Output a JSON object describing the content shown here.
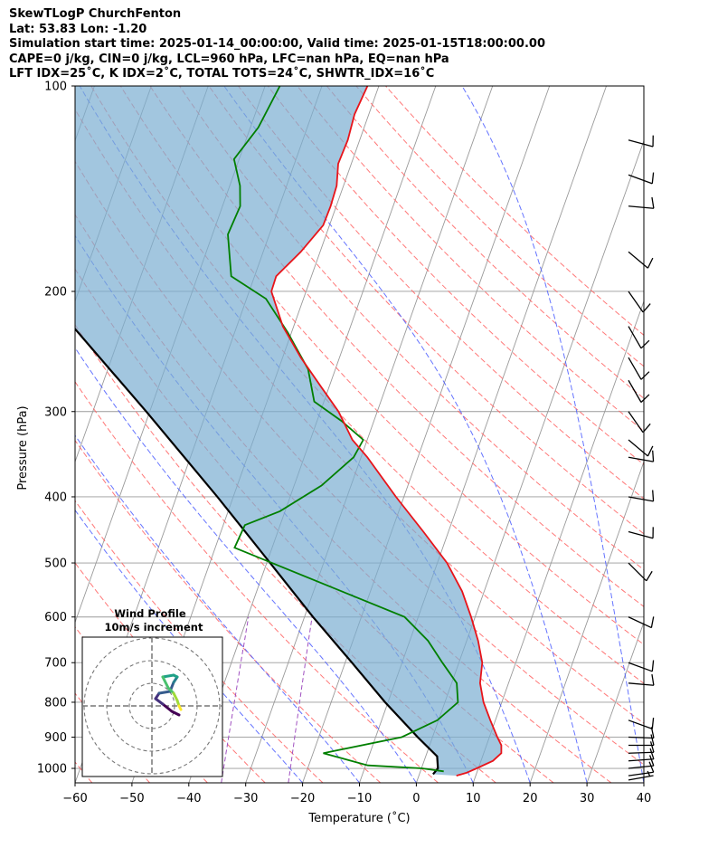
{
  "header": {
    "line1": "SkewTLogP ChurchFenton",
    "line2": "Lat: 53.83   Lon: -1.20",
    "line3": "Simulation start time: 2025-01-14_00:00:00, Valid time: 2025-01-15T18:00:00.00",
    "line4": "CAPE=0 j/kg, CIN=0 j/kg, LCL=960 hPa, LFC=nan hPa, EQ=nan hPa",
    "line5": "LFT IDX=25˚C, K IDX=2˚C, TOTAL TOTS=24˚C, SHWTR_IDX=16˚C"
  },
  "chart_data": {
    "type": "line",
    "subtype": "skew-t log-p",
    "xlabel": "Temperature (˚C)",
    "ylabel": "Pressure (hPa)",
    "xlim": [
      -60,
      40
    ],
    "ylim": [
      1050,
      100
    ],
    "y_scale": "log",
    "x_ticks": [
      "−60",
      "−50",
      "−40",
      "−30",
      "−20",
      "−10",
      "0",
      "10",
      "20",
      "30",
      "40"
    ],
    "y_ticks": [
      "100",
      "200",
      "300",
      "400",
      "500",
      "600",
      "700",
      "800",
      "900",
      "1000"
    ],
    "grid": true,
    "colors": {
      "temperature": "#e8141a",
      "dewpoint": "#007f00",
      "parcel": "#000000",
      "fill": "#7aaed2",
      "dry_adiabat": "#ff6060",
      "moist_adiabat": "#4a5cff",
      "mixing_ratio": "#a050c0",
      "isotherm": "#9a9a9a"
    },
    "series": [
      {
        "role": "temperature",
        "points": [
          {
            "p": 1025,
            "t": 6.6
          },
          {
            "p": 1015,
            "t": 8.2
          },
          {
            "p": 1000,
            "t": 9.7
          },
          {
            "p": 975,
            "t": 12.1
          },
          {
            "p": 950,
            "t": 13.1
          },
          {
            "p": 925,
            "t": 12.6
          },
          {
            "p": 900,
            "t": 11.4
          },
          {
            "p": 850,
            "t": 9.1
          },
          {
            "p": 800,
            "t": 6.8
          },
          {
            "p": 750,
            "t": 5.0
          },
          {
            "p": 700,
            "t": 4.1
          },
          {
            "p": 650,
            "t": 2.0
          },
          {
            "p": 600,
            "t": -0.7
          },
          {
            "p": 550,
            "t": -3.9
          },
          {
            "p": 500,
            "t": -8.3
          },
          {
            "p": 450,
            "t": -14.4
          },
          {
            "p": 400,
            "t": -21.4
          },
          {
            "p": 350,
            "t": -28.9
          },
          {
            "p": 330,
            "t": -32.6
          },
          {
            "p": 300,
            "t": -36.8
          },
          {
            "p": 275,
            "t": -41.6
          },
          {
            "p": 250,
            "t": -46.8
          },
          {
            "p": 225,
            "t": -51.9
          },
          {
            "p": 200,
            "t": -56.1
          },
          {
            "p": 190,
            "t": -56.2
          },
          {
            "p": 175,
            "t": -53.4
          },
          {
            "p": 160,
            "t": -51.1
          },
          {
            "p": 150,
            "t": -51.0
          },
          {
            "p": 140,
            "t": -51.2
          },
          {
            "p": 130,
            "t": -52.3
          },
          {
            "p": 120,
            "t": -52.1
          },
          {
            "p": 110,
            "t": -52.5
          },
          {
            "p": 100,
            "t": -52.0
          }
        ]
      },
      {
        "role": "dewpoint",
        "points": [
          {
            "p": 1010,
            "t": 4.1
          },
          {
            "p": 1000,
            "t": 0.1
          },
          {
            "p": 990,
            "t": -9.6
          },
          {
            "p": 950,
            "t": -18.2
          },
          {
            "p": 900,
            "t": -5.4
          },
          {
            "p": 850,
            "t": -0.2
          },
          {
            "p": 800,
            "t": 2.3
          },
          {
            "p": 750,
            "t": 0.9
          },
          {
            "p": 700,
            "t": -2.9
          },
          {
            "p": 650,
            "t": -6.8
          },
          {
            "p": 600,
            "t": -12.4
          },
          {
            "p": 475,
            "t": -46.6
          },
          {
            "p": 440,
            "t": -46.2
          },
          {
            "p": 420,
            "t": -40.9
          },
          {
            "p": 385,
            "t": -35.2
          },
          {
            "p": 350,
            "t": -31.3
          },
          {
            "p": 330,
            "t": -30.7
          },
          {
            "p": 310,
            "t": -35.6
          },
          {
            "p": 290,
            "t": -41.7
          },
          {
            "p": 260,
            "t": -44.8
          },
          {
            "p": 240,
            "t": -48.6
          },
          {
            "p": 230,
            "t": -50.6
          },
          {
            "p": 205,
            "t": -56.6
          },
          {
            "p": 190,
            "t": -64.1
          },
          {
            "p": 165,
            "t": -67.3
          },
          {
            "p": 150,
            "t": -66.9
          },
          {
            "p": 140,
            "t": -68.2
          },
          {
            "p": 128,
            "t": -70.9
          },
          {
            "p": 115,
            "t": -68.6
          },
          {
            "p": 100,
            "t": -67.4
          }
        ]
      },
      {
        "role": "parcel",
        "points": [
          {
            "p": 1020,
            "t": 2.4
          },
          {
            "p": 1000,
            "t": 2.9
          },
          {
            "p": 960,
            "t": 2.0
          },
          {
            "p": 900,
            "t": -2.6
          },
          {
            "p": 800,
            "t": -10.5
          },
          {
            "p": 700,
            "t": -18.8
          },
          {
            "p": 600,
            "t": -28.5
          },
          {
            "p": 500,
            "t": -39.4
          },
          {
            "p": 400,
            "t": -52.8
          },
          {
            "p": 300,
            "t": -70.6
          },
          {
            "p": 200,
            "t": -96.3
          },
          {
            "p": 150,
            "t": -114.9
          },
          {
            "p": 100,
            "t": -141.3
          }
        ]
      }
    ],
    "wind_barbs": [
      {
        "p": 1040,
        "dir": 80,
        "spd": 5
      },
      {
        "p": 1025,
        "dir": 82,
        "spd": 10
      },
      {
        "p": 1000,
        "dir": 84,
        "spd": 10
      },
      {
        "p": 975,
        "dir": 86,
        "spd": 10
      },
      {
        "p": 950,
        "dir": 88,
        "spd": 10
      },
      {
        "p": 925,
        "dir": 90,
        "spd": 10
      },
      {
        "p": 900,
        "dir": 92,
        "spd": 10
      },
      {
        "p": 850,
        "dir": 110,
        "spd": 10
      },
      {
        "p": 750,
        "dir": 95,
        "spd": 10
      },
      {
        "p": 700,
        "dir": 110,
        "spd": 10
      },
      {
        "p": 600,
        "dir": 115,
        "spd": 10
      },
      {
        "p": 500,
        "dir": 135,
        "spd": 10
      },
      {
        "p": 450,
        "dir": 105,
        "spd": 10
      },
      {
        "p": 400,
        "dir": 100,
        "spd": 10
      },
      {
        "p": 350,
        "dir": 100,
        "spd": 10
      },
      {
        "p": 330,
        "dir": 130,
        "spd": 10
      },
      {
        "p": 300,
        "dir": 145,
        "spd": 10
      },
      {
        "p": 270,
        "dir": 150,
        "spd": 10
      },
      {
        "p": 250,
        "dir": 150,
        "spd": 10
      },
      {
        "p": 225,
        "dir": 150,
        "spd": 10
      },
      {
        "p": 200,
        "dir": 145,
        "spd": 10
      },
      {
        "p": 175,
        "dir": 130,
        "spd": 10
      },
      {
        "p": 150,
        "dir": 95,
        "spd": 10
      },
      {
        "p": 135,
        "dir": 110,
        "spd": 10
      },
      {
        "p": 120,
        "dir": 105,
        "spd": 10
      }
    ],
    "hodograph": {
      "title": "Wind Profile",
      "subtitle": "10m/s increment",
      "ring_increment_ms": 10,
      "rings": 3,
      "points": [
        {
          "u": 7.5,
          "v": -2.5
        },
        {
          "u": 5.5,
          "v": -1.5
        },
        {
          "u": 3.0,
          "v": 0.5
        },
        {
          "u": 1.0,
          "v": 2.0
        },
        {
          "u": 2.0,
          "v": 3.5
        },
        {
          "u": 5.0,
          "v": 4.0
        },
        {
          "u": 6.0,
          "v": 6.5
        },
        {
          "u": 7.0,
          "v": 8.0
        },
        {
          "u": 6.0,
          "v": 8.5
        },
        {
          "u": 3.0,
          "v": 8.0
        },
        {
          "u": 4.5,
          "v": 5.0
        },
        {
          "u": 6.0,
          "v": 3.5
        },
        {
          "u": 7.0,
          "v": 1.5
        },
        {
          "u": 7.5,
          "v": 0.0
        },
        {
          "u": 8.0,
          "v": -1.0
        }
      ]
    }
  }
}
